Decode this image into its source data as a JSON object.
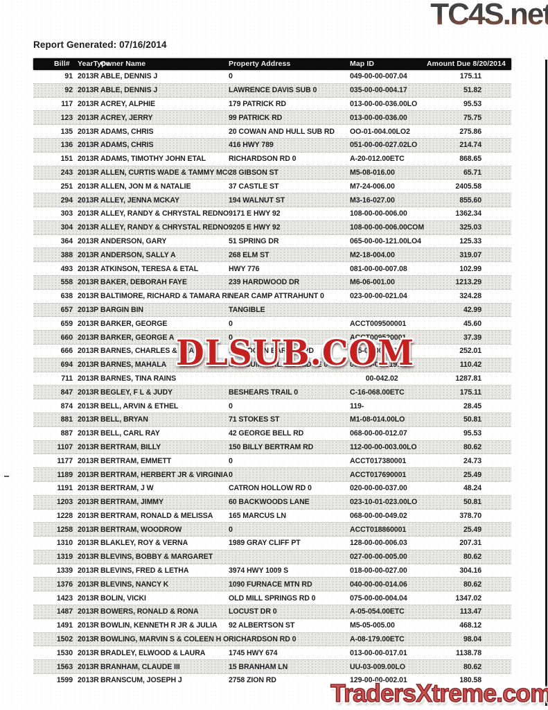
{
  "page": {
    "report_generated": "Report Generated: 07/16/2014"
  },
  "watermarks": {
    "top_logo": "TC4S.net",
    "center_overlay": "DLSUB.COM",
    "bottom_logo": "TradersXtreme.com"
  },
  "colors": {
    "header_bar_bg": "#0c0c0c",
    "row_alt_bg": "#e8e8e5",
    "overlay_red": "#c32020",
    "bottom_logo_red": "#c85252",
    "top_logo_gray_brown": "#6e4a3e"
  },
  "table": {
    "headers": {
      "bill": "Bill#",
      "year": "YearType",
      "owner": "Owner Name",
      "address": "Property Address",
      "map": "Map ID",
      "amount": "Amount Due  8/20/2014"
    },
    "rows": [
      {
        "bill": "91",
        "year": "2013R",
        "owner": "ABLE, DENNIS J",
        "address": "0",
        "map": "049-00-00-007.04",
        "amount": "175.11"
      },
      {
        "bill": "92",
        "year": "2013R",
        "owner": "ABLE, DENNIS J",
        "address": "LAWRENCE DAVIS SUB 0",
        "map": "035-00-00-004.17",
        "amount": "51.82"
      },
      {
        "bill": "117",
        "year": "2013R",
        "owner": "ACREY, ALPHIE",
        "address": "179 PATRICK RD",
        "map": "013-00-00-036.00LO",
        "amount": "95.53"
      },
      {
        "bill": "123",
        "year": "2013R",
        "owner": "ACREY, JERRY",
        "address": "99 PATRICK RD",
        "map": "013-00-00-036.00",
        "amount": "75.75"
      },
      {
        "bill": "135",
        "year": "2013R",
        "owner": "ADAMS, CHRIS",
        "address": "20 COWAN AND HULL SUB RD",
        "map": "OO-01-004.00LO2",
        "amount": "275.86"
      },
      {
        "bill": "136",
        "year": "2013R",
        "owner": "ADAMS, CHRIS",
        "address": "416 HWY 789",
        "map": "051-00-00-027.02LO",
        "amount": "214.74"
      },
      {
        "bill": "151",
        "year": "2013R",
        "owner": "ADAMS, TIMOTHY JOHN ETAL",
        "address": "RICHARDSON RD 0",
        "map": "A-20-012.00ETC",
        "amount": "868.65"
      },
      {
        "bill": "243",
        "year": "2013R",
        "owner": "ALLEN, CURTIS WADE & TAMMY MCG",
        "address": "28 GIBSON ST",
        "map": "M5-08-016.00",
        "amount": "65.71"
      },
      {
        "bill": "251",
        "year": "2013R",
        "owner": "ALLEN, JON M & NATALIE",
        "address": "37 CASTLE ST",
        "map": "M7-24-006.00",
        "amount": "2405.58"
      },
      {
        "bill": "294",
        "year": "2013R",
        "owner": "ALLEY, JENNA MCKAY",
        "address": "194 WALNUT ST",
        "map": "M3-16-027.00",
        "amount": "855.60"
      },
      {
        "bill": "303",
        "year": "2013R",
        "owner": "ALLEY, RANDY & CHRYSTAL REDNOU",
        "address": "9171 E HWY 92",
        "map": "108-00-00-006.00",
        "amount": "1362.34"
      },
      {
        "bill": "304",
        "year": "2013R",
        "owner": "ALLEY, RANDY & CHRYSTAL REDNOU",
        "address": "9205 E HWY 92",
        "map": "108-00-00-006.00COM",
        "amount": "325.03"
      },
      {
        "bill": "364",
        "year": "2013R",
        "owner": "ANDERSON, GARY",
        "address": "51 SPRING DR",
        "map": "065-00-00-121.00LO4",
        "amount": "125.33"
      },
      {
        "bill": "388",
        "year": "2013R",
        "owner": "ANDERSON, SALLY A",
        "address": "268 ELM ST",
        "map": "M2-18-004.00",
        "amount": "319.07"
      },
      {
        "bill": "493",
        "year": "2013R",
        "owner": "ATKINSON, TERESA & ETAL",
        "address": "HWY 776",
        "map": "081-00-00-007.08",
        "amount": "102.99"
      },
      {
        "bill": "558",
        "year": "2013R",
        "owner": "BAKER, DEBORAH FAYE",
        "address": "239 HARDWOOD DR",
        "map": "M6-06-001.00",
        "amount": "1213.29"
      },
      {
        "bill": "638",
        "year": "2013R",
        "owner": "BALTIMORE, RICHARD & TAMARA RE",
        "address": "NEAR CAMP ATTRAHUNT 0",
        "map": "023-00-00-021.04",
        "amount": "324.28"
      },
      {
        "bill": "657",
        "year": "2013P",
        "owner": "BARGIN BIN",
        "address": "TANGIBLE",
        "map": "",
        "amount": "42.99"
      },
      {
        "bill": "659",
        "year": "2013R",
        "owner": "BARKER, GEORGE",
        "address": "0",
        "map": "ACCT009500001",
        "amount": "45.60"
      },
      {
        "bill": "660",
        "year": "2013R",
        "owner": "BARKER, GEORGE A",
        "address": "0",
        "map": "ACCT009520001",
        "amount": "37.39"
      },
      {
        "bill": "666",
        "year": "2013R",
        "owner": "BARNES, CHARLES & TRACY",
        "address": "164 LOGAN BARNES RD",
        "map": "005-00-00-008.00",
        "amount": "252.01"
      },
      {
        "bill": "694",
        "year": "2013R",
        "owner": "BARNES, MAHALA",
        "address": "OFF CUMBERLAND RIDGE 0",
        "map": "063-00-00-019.00",
        "amount": "110.42"
      },
      {
        "bill": "711",
        "year": "2013R",
        "owner": "BARNES, TINA RAINS",
        "address": "",
        "map": "        00-042.02",
        "amount": "1287.81"
      },
      {
        "bill": "847",
        "year": "2013R",
        "owner": "BEGLEY, F L & JUDY",
        "address": "BESHEARS TRAIL 0",
        "map": "C-16-068.00ETC",
        "amount": "175.11"
      },
      {
        "bill": "874",
        "year": "2013R",
        "owner": "BELL, ARVIN & ETHEL",
        "address": "0",
        "map": "119-",
        "amount": "28.45"
      },
      {
        "bill": "881",
        "year": "2013R",
        "owner": "BELL, BRYAN",
        "address": "71 STOKES ST",
        "map": "M1-08-014.00LO",
        "amount": "50.81"
      },
      {
        "bill": "887",
        "year": "2013R",
        "owner": "BELL, CARL RAY",
        "address": "42 GEORGE BELL RD",
        "map": "068-00-00-012.07",
        "amount": "95.53"
      },
      {
        "bill": "1107",
        "year": "2013R",
        "owner": "BERTRAM, BILLY",
        "address": "150 BILLY BERTRAM RD",
        "map": "112-00-00-003.00LO",
        "amount": "80.62"
      },
      {
        "bill": "1177",
        "year": "2013R",
        "owner": "BERTRAM, EMMETT",
        "address": "0",
        "map": "ACCT017380001",
        "amount": "24.73"
      },
      {
        "bill": "1189",
        "year": "2013R",
        "owner": "BERTRAM, HERBERT JR & VIRGINIA",
        "address": "0",
        "map": "ACCT017690001",
        "amount": "25.49"
      },
      {
        "bill": "1191",
        "year": "2013R",
        "owner": "BERTRAM, J W",
        "address": "CATRON HOLLOW RD 0",
        "map": "020-00-00-037.00",
        "amount": "48.24"
      },
      {
        "bill": "1203",
        "year": "2013R",
        "owner": "BERTRAM, JIMMY",
        "address": "60 BACKWOODS LANE",
        "map": "023-10-01-023.00LO",
        "amount": "50.81"
      },
      {
        "bill": "1228",
        "year": "2013R",
        "owner": "BERTRAM, RONALD & MELISSA",
        "address": "165 MARCUS LN",
        "map": "068-00-00-049.02",
        "amount": "378.70"
      },
      {
        "bill": "1258",
        "year": "2013R",
        "owner": "BERTRAM, WOODROW",
        "address": "0",
        "map": "ACCT018860001",
        "amount": "25.49"
      },
      {
        "bill": "1310",
        "year": "2013R",
        "owner": "BLAKLEY, ROY & VERNA",
        "address": "1989 GRAY CLIFF PT",
        "map": "128-00-00-006.03",
        "amount": "207.31"
      },
      {
        "bill": "1319",
        "year": "2013R",
        "owner": "BLEVINS, BOBBY & MARGARET",
        "address": "",
        "map": "027-00-00-005.00",
        "amount": "80.62"
      },
      {
        "bill": "1339",
        "year": "2013R",
        "owner": "BLEVINS, FRED & LETHA",
        "address": "3974 HWY 1009 S",
        "map": "018-00-00-027.00",
        "amount": "304.16"
      },
      {
        "bill": "1376",
        "year": "2013R",
        "owner": "BLEVINS, NANCY K",
        "address": "1090 FURNACE MTN RD",
        "map": "040-00-00-014.06",
        "amount": "80.62"
      },
      {
        "bill": "1423",
        "year": "2013R",
        "owner": "BOLIN, VICKI",
        "address": "OLD MILL SPRINGS RD 0",
        "map": "075-00-00-004.04",
        "amount": "1347.02"
      },
      {
        "bill": "1487",
        "year": "2013R",
        "owner": "BOWERS, RONALD & RONA",
        "address": "LOCUST DR 0",
        "map": "A-05-054.00ETC",
        "amount": "113.47"
      },
      {
        "bill": "1491",
        "year": "2013R",
        "owner": "BOWLIN, KENNETH R JR & JULIA",
        "address": "92 ALBERTSON ST",
        "map": "M5-05-005.00",
        "amount": "468.12"
      },
      {
        "bill": "1502",
        "year": "2013R",
        "owner": "BOWLING, MARVIN S & COLEEN H O",
        "address": "RICHARDSON RD 0",
        "map": "A-08-179.00ETC",
        "amount": "98.04"
      },
      {
        "bill": "1530",
        "year": "2013R",
        "owner": "BRADLEY, ELWOOD & LAURA",
        "address": "1745 HWY 674",
        "map": "013-00-00-017.01",
        "amount": "1138.78"
      },
      {
        "bill": "1563",
        "year": "2013R",
        "owner": "BRANHAM, CLAUDE III",
        "address": "15 BRANHAM LN",
        "map": "UU-03-009.00LO",
        "amount": "80.62"
      },
      {
        "bill": "1599",
        "year": "2013R",
        "owner": "BRANSCUM, JOSEPH J",
        "address": "2758 ZION RD",
        "map": "129-00-00-002.01",
        "amount": "180.58"
      }
    ]
  }
}
